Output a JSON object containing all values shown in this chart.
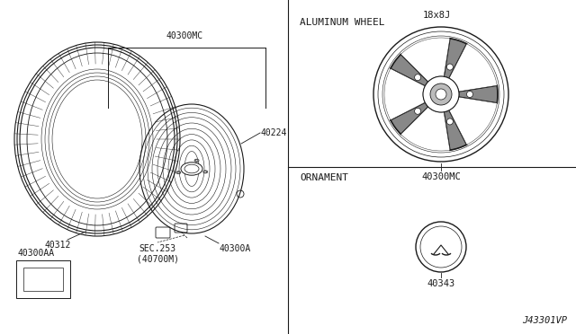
{
  "bg_color": "#ffffff",
  "line_color": "#1a1a1a",
  "title_diagram": "J43301VP",
  "sections": {
    "aluminum_wheel_label": "ALUMINUM WHEEL",
    "wheel_size_label": "18x8J",
    "wheel_part_label": "40300MC",
    "ornament_label": "ORNAMENT",
    "ornament_part_label": "40343",
    "tire_label": "40312",
    "rim_label": "40300MC",
    "valve_label": "40224",
    "hub_label": "40300A",
    "sec_label": "SEC.253\n(40700M)",
    "weight_label": "40300AA"
  },
  "font_size_small": 7.5,
  "font_size_label": 7.0
}
